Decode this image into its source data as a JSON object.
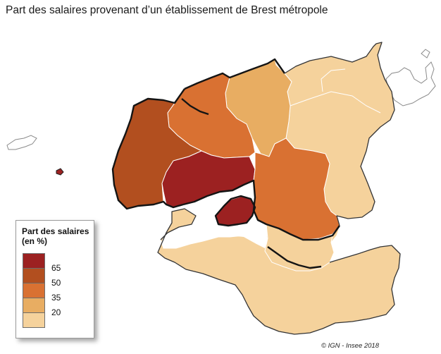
{
  "title": "Part des salaires provenant d’un établissement de Brest métropole",
  "legend": {
    "title_line1": "Part des salaires",
    "title_line2": "(en %)",
    "classes": [
      {
        "color": "#9c2121"
      },
      {
        "color": "#b24f1f"
      },
      {
        "color": "#d97132"
      },
      {
        "color": "#e8ad62"
      },
      {
        "color": "#f5d29c"
      }
    ],
    "thresholds": [
      "65",
      "50",
      "35",
      "20"
    ]
  },
  "credit": "© IGN - Insee 2018",
  "colors": {
    "water": "#ffffff",
    "outside_coast": "#9a9a9a",
    "boundary_internal": "#ffffff",
    "coast_outline": "#141414"
  }
}
